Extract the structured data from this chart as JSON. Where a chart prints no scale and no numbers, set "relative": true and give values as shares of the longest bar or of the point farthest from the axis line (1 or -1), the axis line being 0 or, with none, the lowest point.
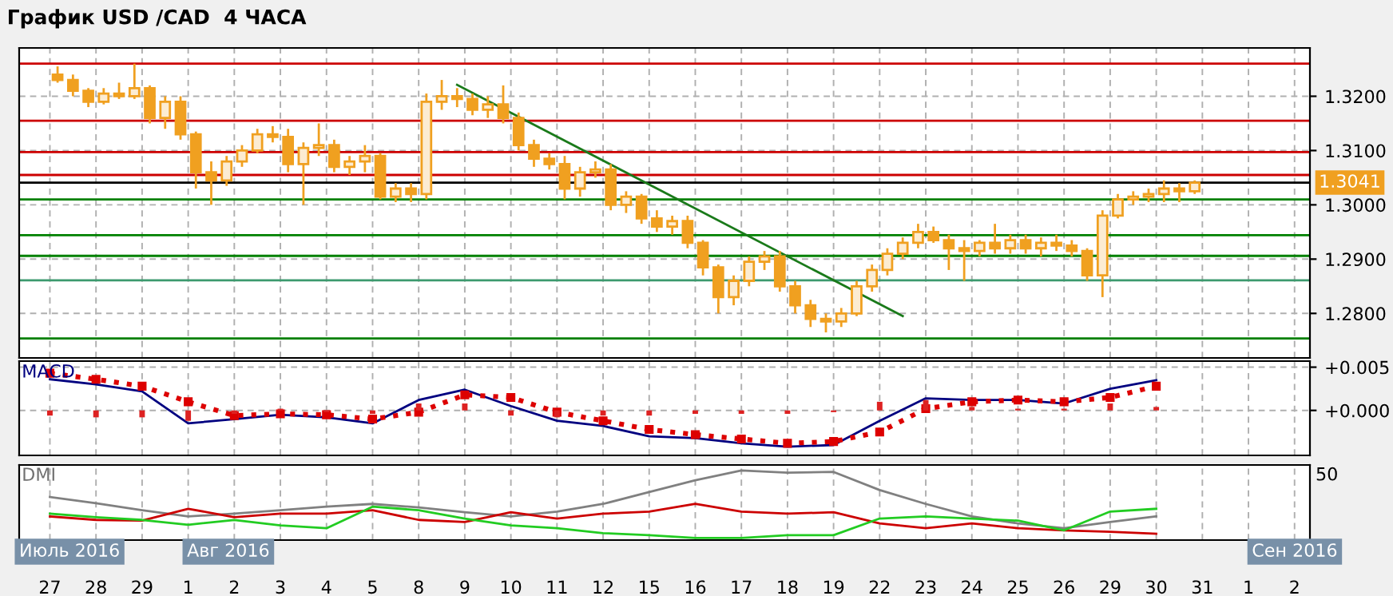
{
  "chart_data": [
    {
      "type": "candlestick",
      "title": "График USD /CAD  4 ЧАСА",
      "color": "#f0a020",
      "grid": true,
      "tick_labels": "y",
      "categories": [
        null,
        null,
        null,
        null,
        null,
        null,
        null,
        null,
        null,
        null,
        null,
        null,
        null,
        null,
        null,
        null,
        null,
        null,
        null,
        null,
        null,
        null,
        null,
        null,
        null,
        null,
        null,
        null,
        null,
        null,
        null,
        null,
        null,
        null,
        null,
        null,
        null,
        null,
        null,
        null,
        null,
        null,
        null,
        null,
        null,
        null,
        null,
        null,
        null,
        null,
        null,
        null,
        null,
        null,
        null,
        null,
        null,
        null,
        null,
        null,
        null,
        null,
        null,
        null,
        null,
        null,
        null,
        null,
        null,
        null,
        null,
        null,
        null,
        null,
        null,
        null,
        null,
        null,
        null,
        null,
        null,
        null,
        null,
        null
      ],
      "ohlc": [
        null,
        null,
        [
          1.324,
          1.3255,
          1.3225,
          1.323
        ],
        [
          1.323,
          1.324,
          1.32,
          1.321
        ],
        [
          1.321,
          1.3215,
          1.318,
          1.319
        ],
        [
          1.319,
          1.3215,
          1.3185,
          1.3205
        ],
        [
          1.3205,
          1.3225,
          1.3195,
          1.32
        ],
        [
          1.32,
          1.326,
          1.3195,
          1.3215
        ],
        [
          1.3215,
          1.322,
          1.315,
          1.316
        ],
        [
          1.316,
          1.32,
          1.314,
          1.319
        ],
        [
          1.319,
          1.32,
          1.312,
          1.313
        ],
        [
          1.313,
          1.3135,
          1.303,
          1.306
        ],
        [
          1.306,
          1.308,
          1.3,
          1.3045
        ],
        [
          1.3045,
          1.309,
          1.3035,
          1.308
        ],
        [
          1.308,
          1.311,
          1.307,
          1.31
        ],
        [
          1.31,
          1.314,
          1.3095,
          1.313
        ],
        [
          1.313,
          1.3145,
          1.3115,
          1.3125
        ],
        [
          1.3125,
          1.314,
          1.306,
          1.3075
        ],
        [
          1.3075,
          1.3115,
          1.3,
          1.3105
        ],
        [
          1.3105,
          1.315,
          1.309,
          1.311
        ],
        [
          1.311,
          1.312,
          1.306,
          1.307
        ],
        [
          1.307,
          1.309,
          1.3055,
          1.308
        ],
        [
          1.308,
          1.311,
          1.306,
          1.309
        ],
        [
          1.309,
          1.3095,
          1.301,
          1.3015
        ],
        [
          1.3015,
          1.304,
          1.3005,
          1.303
        ],
        [
          1.303,
          1.304,
          1.3005,
          1.302
        ],
        [
          1.302,
          1.3205,
          1.301,
          1.319
        ],
        [
          1.319,
          1.323,
          1.3175,
          1.32
        ],
        [
          1.32,
          1.3215,
          1.318,
          1.3195
        ],
        [
          1.3195,
          1.3205,
          1.3165,
          1.3175
        ],
        [
          1.3175,
          1.32,
          1.316,
          1.3185
        ],
        [
          1.3185,
          1.322,
          1.315,
          1.316
        ],
        [
          1.316,
          1.317,
          1.31,
          1.311
        ],
        [
          1.311,
          1.312,
          1.307,
          1.3085
        ],
        [
          1.3085,
          1.3095,
          1.3065,
          1.3075
        ],
        [
          1.3075,
          1.309,
          1.301,
          1.303
        ],
        [
          1.303,
          1.307,
          1.3015,
          1.306
        ],
        [
          1.306,
          1.308,
          1.305,
          1.3065
        ],
        [
          1.3065,
          1.3075,
          1.299,
          1.3
        ],
        [
          1.3,
          1.3025,
          1.2985,
          1.3015
        ],
        [
          1.3015,
          1.302,
          1.2965,
          1.2975
        ],
        [
          1.2975,
          1.299,
          1.295,
          1.296
        ],
        [
          1.296,
          1.298,
          1.2945,
          1.297
        ],
        [
          1.297,
          1.298,
          1.292,
          1.293
        ],
        [
          1.293,
          1.2935,
          1.287,
          1.2885
        ],
        [
          1.2885,
          1.289,
          1.28,
          1.283
        ],
        [
          1.283,
          1.287,
          1.2815,
          1.286
        ],
        [
          1.286,
          1.2905,
          1.285,
          1.2895
        ],
        [
          1.2895,
          1.2915,
          1.288,
          1.2905
        ],
        [
          1.2905,
          1.2915,
          1.284,
          1.285
        ],
        [
          1.285,
          1.286,
          1.28,
          1.2815
        ],
        [
          1.2815,
          1.2825,
          1.2775,
          1.279
        ],
        [
          1.279,
          1.28,
          1.2765,
          1.2785
        ],
        [
          1.2785,
          1.281,
          1.2775,
          1.28
        ],
        [
          1.28,
          1.286,
          1.2795,
          1.285
        ],
        [
          1.285,
          1.289,
          1.284,
          1.288
        ],
        [
          1.288,
          1.292,
          1.287,
          1.291
        ],
        [
          1.291,
          1.294,
          1.29,
          1.293
        ],
        [
          1.293,
          1.2965,
          1.292,
          1.295
        ],
        [
          1.295,
          1.296,
          1.293,
          1.2935
        ],
        [
          1.2935,
          1.2945,
          1.288,
          1.292
        ],
        [
          1.292,
          1.2935,
          1.286,
          1.2915
        ],
        [
          1.2915,
          1.2935,
          1.2905,
          1.293
        ],
        [
          1.293,
          1.2965,
          1.291,
          1.292
        ],
        [
          1.292,
          1.2945,
          1.291,
          1.2935
        ],
        [
          1.2935,
          1.2945,
          1.291,
          1.292
        ],
        [
          1.292,
          1.294,
          1.2905,
          1.293
        ],
        [
          1.293,
          1.2945,
          1.2915,
          1.2925
        ],
        [
          1.2925,
          1.2935,
          1.2905,
          1.2915
        ],
        [
          1.2915,
          1.292,
          1.286,
          1.287
        ],
        [
          1.287,
          1.299,
          1.283,
          1.298
        ],
        [
          1.298,
          1.302,
          1.2975,
          1.301
        ],
        [
          1.301,
          1.3025,
          1.3,
          1.3015
        ],
        [
          1.3015,
          1.303,
          1.3005,
          1.302
        ],
        [
          1.302,
          1.3045,
          1.3005,
          1.303
        ],
        [
          1.303,
          1.304,
          1.3005,
          1.3025
        ],
        [
          1.3025,
          1.3045,
          1.302,
          1.3041
        ],
        null,
        null,
        null,
        null,
        null,
        null,
        null
      ],
      "series": [
        {
          "type": "line",
          "color": "#1a7a1a",
          "values": [
            null,
            null,
            null,
            null,
            null,
            null,
            null,
            null,
            null,
            null,
            null,
            null,
            null,
            null,
            null,
            null,
            null,
            null,
            null,
            null,
            null,
            null,
            null,
            null,
            null,
            null,
            null,
            null,
            1.3221,
            null,
            null,
            null,
            null,
            null,
            null,
            null,
            null,
            null,
            null,
            null,
            null,
            null,
            null,
            null,
            null,
            null,
            null,
            null,
            null,
            null,
            null,
            null,
            null,
            null,
            null,
            null,
            null,
            1.2795,
            null,
            null,
            null,
            null,
            null,
            null,
            null,
            null,
            null,
            null,
            null,
            null,
            null,
            null,
            null,
            null,
            null,
            null,
            null,
            null,
            null,
            null,
            null,
            null,
            null,
            null
          ]
        }
      ],
      "ref_lines": [
        {
          "axis": "y",
          "value": 1.326,
          "color": "#cc0000"
        },
        {
          "axis": "y",
          "value": 1.3155,
          "color": "#cc0000"
        },
        {
          "axis": "y",
          "value": 1.3097,
          "color": "#cc0000"
        },
        {
          "axis": "y",
          "value": 1.3055,
          "color": "#cc0000"
        },
        {
          "axis": "y",
          "value": 1.3041,
          "color": "#000000",
          "label": "1.3041"
        },
        {
          "axis": "y",
          "value": 1.301,
          "color": "#008000"
        },
        {
          "axis": "y",
          "value": 1.2944,
          "color": "#008000"
        },
        {
          "axis": "y",
          "value": 1.2906,
          "color": "#008000"
        },
        {
          "axis": "y",
          "value": 1.2861,
          "color": "#3c9a6e"
        },
        {
          "axis": "y",
          "value": 1.2754,
          "color": "#008000"
        }
      ],
      "ylim": [
        1.2718,
        1.3289
      ],
      "yticks": [
        {
          "value": 1.28,
          "label": "1.2800"
        },
        {
          "value": 1.29,
          "label": "1.2900"
        },
        {
          "value": 1.3,
          "label": "1.3000"
        },
        {
          "value": 1.31,
          "label": "1.3100"
        },
        {
          "value": 1.32,
          "label": "1.3200"
        }
      ]
    },
    {
      "type": "line",
      "title": "MACD",
      "grid": true,
      "tick_labels": "y",
      "categories": [
        "27",
        "28",
        "29",
        "1",
        "2",
        "3",
        "4",
        "5",
        "8",
        "9",
        "10",
        "11",
        "12",
        "15",
        "16",
        "17",
        "18",
        "19",
        "22",
        "23",
        "24",
        "25",
        "26",
        "29",
        "30",
        "31",
        "1",
        "2"
      ],
      "series": [
        {
          "type": "bar",
          "color": "#dd2222",
          "values": [
            -0.0006,
            -0.0008,
            -0.0008,
            -0.0012,
            -0.0004,
            0.0002,
            -0.0002,
            -0.0004,
            0.0008,
            0.0008,
            -0.0006,
            -0.0008,
            -0.0006,
            -0.0006,
            -0.0004,
            -0.0004,
            -0.0004,
            -0.0002,
            0.001,
            0.0012,
            0.0004,
            0.0002,
            0.0002,
            0.0008,
            0.0004,
            null,
            null,
            null
          ]
        },
        {
          "type": "line",
          "color": "#000080",
          "values": [
            0.0036,
            0.003,
            0.0022,
            -0.0015,
            -0.001,
            -0.0005,
            -0.0008,
            -0.0015,
            0.0012,
            0.0024,
            0.0005,
            -0.0012,
            -0.0018,
            -0.003,
            -0.0032,
            -0.0038,
            -0.0042,
            -0.004,
            -0.0012,
            0.0014,
            0.0012,
            0.0012,
            0.0008,
            0.0025,
            0.0035,
            null,
            null,
            null
          ]
        },
        {
          "type": "line",
          "color": "#dd0000",
          "line_style": "dotted",
          "marker": "square",
          "values": [
            0.0043,
            0.0036,
            0.0028,
            0.001,
            -0.0006,
            -0.0004,
            -0.0005,
            -0.001,
            -0.0002,
            0.0018,
            0.0015,
            -0.0002,
            -0.0012,
            -0.0022,
            -0.0028,
            -0.0033,
            -0.0038,
            -0.0036,
            -0.0025,
            0.0002,
            0.001,
            0.0012,
            0.001,
            0.0015,
            0.0028,
            null,
            null,
            null
          ]
        }
      ],
      "ylim": [
        -0.0052,
        0.0057
      ],
      "yticks": [
        {
          "value": 0,
          "label": "+0.000"
        },
        {
          "value": 0.005,
          "label": "+0.005"
        }
      ]
    },
    {
      "type": "line",
      "title": "DMI",
      "grid": true,
      "relative": true,
      "categories": [
        "27",
        "28",
        "29",
        "1",
        "2",
        "3",
        "4",
        "5",
        "8",
        "9",
        "10",
        "11",
        "12",
        "15",
        "16",
        "17",
        "18",
        "19",
        "22",
        "23",
        "24",
        "25",
        "26",
        "29",
        "30",
        "31",
        "1",
        "2"
      ],
      "series": [
        {
          "color": "#808080",
          "values": [
            0.62,
            0.53,
            0.43,
            0.34,
            0.38,
            0.43,
            0.48,
            0.52,
            0.47,
            0.4,
            0.34,
            0.41,
            0.52,
            0.69,
            0.86,
            1,
            0.97,
            0.98,
            0.72,
            0.52,
            0.34,
            0.24,
            0.17,
            0.26,
            0.34,
            null,
            null,
            null
          ]
        },
        {
          "color": "#cc0000",
          "values": [
            0.34,
            0.29,
            0.28,
            0.45,
            0.33,
            0.38,
            0.38,
            0.43,
            0.29,
            0.26,
            0.4,
            0.31,
            0.38,
            0.41,
            0.52,
            0.41,
            0.38,
            0.4,
            0.24,
            0.17,
            0.24,
            0.17,
            0.14,
            0.12,
            0.09,
            null,
            null,
            null
          ]
        },
        {
          "color": "#22cc22",
          "values": [
            0.38,
            0.33,
            0.29,
            0.22,
            0.29,
            0.21,
            0.17,
            0.48,
            0.43,
            0.31,
            0.21,
            0.17,
            0.1,
            0.07,
            0.03,
            0.03,
            0.07,
            0.07,
            0.31,
            0.34,
            0.31,
            0.28,
            0.14,
            0.41,
            0.45,
            null,
            null,
            null
          ]
        }
      ],
      "annotations": [
        "50",
        "Июль 2016",
        "Авг 2016",
        "Сен 2016"
      ]
    }
  ]
}
